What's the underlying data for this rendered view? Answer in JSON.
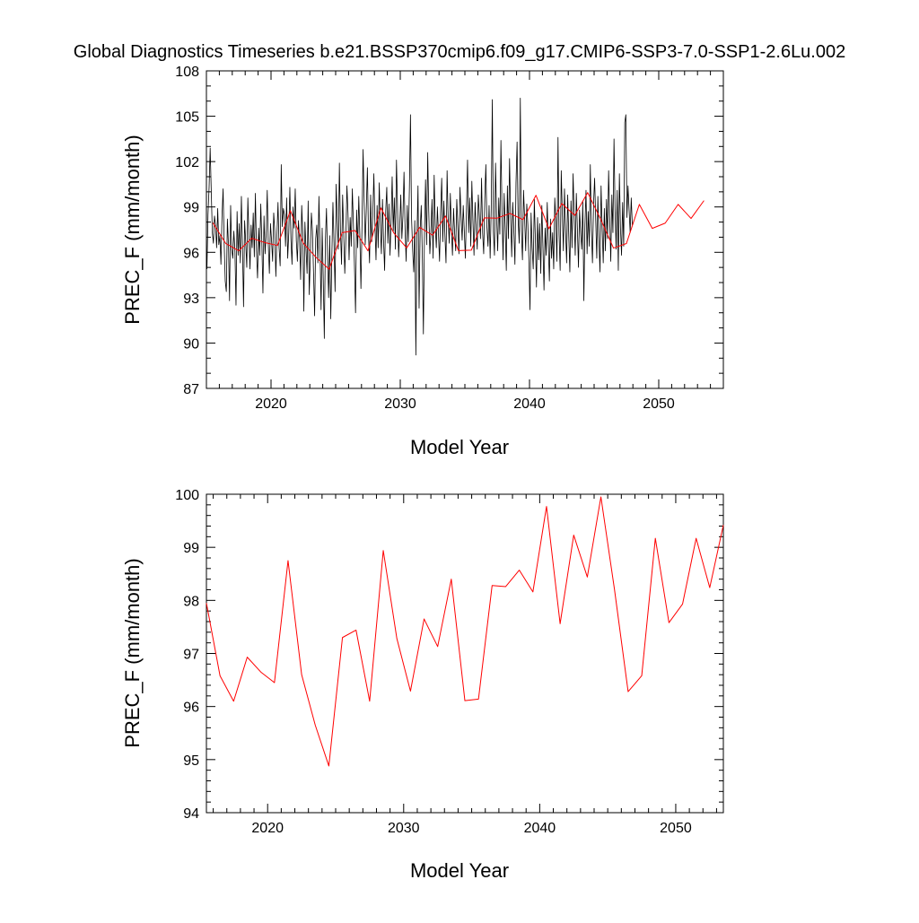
{
  "figure_title": "Global Diagnostics Timeseries b.e21.BSSP370cmip6.f09_g17.CMIP6-SSP3-7.0-SSP1-2.6Lu.002",
  "colors": {
    "monthly": "#000000",
    "annual": "#ff0000",
    "axis": "#000000",
    "background": "#ffffff"
  },
  "chart_data": [
    {
      "type": "line",
      "panel": "top",
      "xlabel": "Model Year",
      "ylabel": "PREC_F (mm/month)",
      "xlim": [
        2015,
        2055
      ],
      "ylim": [
        87,
        108
      ],
      "xticks": [
        2020,
        2030,
        2040,
        2050
      ],
      "yticks": [
        87,
        90,
        93,
        96,
        99,
        102,
        105,
        108
      ],
      "series": [
        {
          "name": "monthly",
          "color": "#000000",
          "x_start": 2015.04,
          "x_step": 0.08333,
          "values": [
            94.9,
            98.5,
            100.3,
            102.9,
            100.1,
            97.3,
            96.6,
            98.4,
            97.8,
            96.3,
            98.9,
            96.5,
            97.1,
            95.2,
            98.4,
            100.2,
            96.6,
            94.1,
            93.4,
            98.2,
            96.5,
            92.8,
            99.1,
            96.2,
            95.6,
            97.4,
            96.1,
            92.5,
            98.7,
            95.8,
            97.9,
            95.3,
            99.7,
            96.4,
            92.4,
            98.1,
            96.7,
            95.0,
            99.6,
            97.1,
            94.9,
            97.8,
            96.3,
            98.6,
            95.7,
            99.9,
            96.1,
            94.3,
            97.6,
            95.8,
            99.2,
            96.6,
            93.3,
            98.4,
            95.9,
            97.2,
            100.1,
            96.5,
            94.6,
            97.9,
            96.8,
            95.4,
            98.6,
            97.4,
            94.4,
            97.1,
            99.3,
            96.3,
            95.1,
            101.8,
            97.7,
            98.9,
            98.5,
            96.4,
            99.6,
            95.6,
            97.3,
            100.3,
            96.9,
            95.2,
            99.0,
            97.6,
            100.2,
            96.8,
            95.4,
            98.1,
            96.9,
            94.2,
            99.1,
            97.3,
            92.1,
            98.0,
            96.2,
            94.6,
            99.4,
            93.2,
            95.6,
            98.6,
            97.4,
            94.6,
            91.8,
            96.9,
            97.8,
            95.3,
            99.7,
            96.4,
            92.2,
            97.6,
            94.3,
            90.3,
            96.8,
            98.9,
            95.6,
            93.0,
            97.1,
            91.6,
            95.8,
            99.3,
            96.6,
            93.4,
            100.5,
            98.1,
            96.2,
            101.9,
            97.4,
            95.2,
            99.8,
            97.3,
            94.6,
            96.9,
            100.4,
            98.6,
            95.5,
            98.3,
            96.4,
            100.2,
            97.9,
            95.1,
            92.0,
            98.8,
            96.3,
            99.7,
            97.1,
            93.6,
            97.8,
            102.8,
            99.3,
            96.5,
            98.9,
            101.6,
            97.2,
            95.3,
            99.8,
            96.7,
            98.4,
            101.2,
            97.9,
            95.5,
            99.1,
            96.3,
            100.6,
            97.8,
            95.9,
            99.5,
            96.8,
            94.8,
            98.7,
            100.3,
            96.6,
            99.2,
            95.8,
            98.1,
            101.0,
            97.4,
            99.6,
            96.2,
            102.1,
            98.9,
            95.7,
            97.6,
            99.8,
            96.9,
            98.4,
            101.3,
            97.5,
            95.4,
            99.1,
            96.7,
            100.2,
            105.1,
            98.3,
            96.2,
            94.7,
            98.1,
            89.2,
            96.9,
            100.4,
            92.3,
            97.5,
            99.1,
            95.8,
            90.6,
            97.3,
            100.8,
            96.5,
            102.6,
            98.7,
            95.9,
            97.4,
            99.5,
            95.6,
            101.1,
            97.8,
            96.3,
            99.0,
            97.2,
            95.4,
            98.6,
            100.9,
            96.7,
            99.4,
            97.1,
            95.3,
            101.4,
            98.2,
            96.6,
            99.9,
            97.5,
            95.8,
            98.9,
            97.3,
            96.1,
            99.5,
            97.7,
            95.9,
            100.3,
            98.4,
            96.8,
            99.1,
            97.4,
            95.6,
            98.8,
            102.1,
            97.3,
            99.6,
            96.4,
            100.7,
            98.1,
            95.8,
            99.3,
            97.6,
            96.2,
            99.8,
            98.4,
            96.9,
            100.9,
            97.3,
            95.9,
            99.5,
            101.8,
            97.7,
            96.4,
            99.1,
            95.6,
            98.9,
            106.1,
            97.4,
            95.8,
            101.9,
            98.3,
            96.1,
            99.6,
            97.2,
            103.4,
            98.7,
            95.5,
            99.9,
            97.6,
            94.8,
            100.4,
            96.9,
            102.2,
            98.5,
            95.7,
            99.3,
            97.4,
            95.2,
            100.6,
            103.3,
            98.1,
            96.6,
            106.2,
            97.4,
            95.5,
            100.1,
            98.3,
            96.1,
            99.2,
            97.8,
            95.4,
            92.2,
            98.6,
            96.3,
            94.9,
            99.5,
            96.8,
            93.7,
            98.3,
            95.5,
            97.9,
            94.6,
            99.1,
            96.4,
            93.5,
            97.6,
            95.8,
            99.3,
            96.5,
            94.1,
            98.2,
            95.6,
            97.3,
            94.9,
            99.6,
            98.1,
            95.4,
            103.6,
            97.2,
            94.8,
            101.4,
            98.6,
            96.1,
            100.2,
            97.5,
            95.3,
            99.8,
            97.1,
            94.7,
            99.4,
            96.3,
            101.2,
            98.4,
            95.8,
            99.9,
            97.6,
            95.0,
            98.8,
            97.3,
            96.2,
            99.4,
            92.8,
            97.8,
            100.1,
            95.9,
            98.7,
            96.4,
            101.8,
            97.5,
            95.3,
            99.2,
            100.9,
            98.2,
            95.6,
            99.7,
            96.8,
            94.7,
            100.4,
            97.6,
            95.3,
            98.9,
            96.1,
            99.5,
            96.9,
            101.4,
            98.3,
            95.4,
            99.8,
            97.3,
            103.5,
            98.7,
            96.2,
            100.1,
            94.8,
            101.2,
            97.6,
            95.8,
            99.3,
            96.4,
            104.6,
            105.1,
            98.3,
            100.4,
            98.8,
            97.3,
            99.6,
            97.8
          ]
        },
        {
          "name": "annual mean",
          "color": "#ff0000",
          "x": [
            2015.5,
            2016.5,
            2017.5,
            2018.5,
            2019.5,
            2020.5,
            2021.5,
            2022.5,
            2023.5,
            2024.5,
            2025.5,
            2026.5,
            2027.5,
            2028.5,
            2029.5,
            2030.5,
            2031.5,
            2032.5,
            2033.5,
            2034.5,
            2035.5,
            2036.5,
            2037.5,
            2038.5,
            2039.5,
            2040.5,
            2041.5,
            2042.5,
            2043.5,
            2044.5,
            2045.5,
            2046.5,
            2047.5,
            2048.5,
            2049.5,
            2050.5,
            2051.5,
            2052.5,
            2053.5
          ],
          "values": [
            97.95,
            96.58,
            96.1,
            96.93,
            96.65,
            96.45,
            98.75,
            96.6,
            95.65,
            94.88,
            97.3,
            97.44,
            96.1,
            98.94,
            97.28,
            96.29,
            97.65,
            97.13,
            98.4,
            96.11,
            96.14,
            98.28,
            98.26,
            98.57,
            98.16,
            99.77,
            97.56,
            99.23,
            98.44,
            99.95,
            98.2,
            96.28,
            96.58,
            99.17,
            97.58,
            97.93,
            99.17,
            98.24,
            99.42
          ]
        }
      ]
    },
    {
      "type": "line",
      "panel": "bottom",
      "xlabel": "Model Year",
      "ylabel": "PREC_F (mm/month)",
      "xlim": [
        2015.5,
        2053.5
      ],
      "ylim": [
        94,
        100
      ],
      "xticks": [
        2020,
        2030,
        2040,
        2050
      ],
      "yticks": [
        94,
        95,
        96,
        97,
        98,
        99,
        100
      ],
      "series": [
        {
          "name": "annual mean",
          "color": "#ff0000",
          "x": [
            2015.5,
            2016.5,
            2017.5,
            2018.5,
            2019.5,
            2020.5,
            2021.5,
            2022.5,
            2023.5,
            2024.5,
            2025.5,
            2026.5,
            2027.5,
            2028.5,
            2029.5,
            2030.5,
            2031.5,
            2032.5,
            2033.5,
            2034.5,
            2035.5,
            2036.5,
            2037.5,
            2038.5,
            2039.5,
            2040.5,
            2041.5,
            2042.5,
            2043.5,
            2044.5,
            2045.5,
            2046.5,
            2047.5,
            2048.5,
            2049.5,
            2050.5,
            2051.5,
            2052.5,
            2053.5
          ],
          "values": [
            97.95,
            96.58,
            96.1,
            96.93,
            96.65,
            96.45,
            98.75,
            96.6,
            95.65,
            94.88,
            97.3,
            97.44,
            96.1,
            98.94,
            97.28,
            96.29,
            97.65,
            97.13,
            98.4,
            96.11,
            96.14,
            98.28,
            98.26,
            98.57,
            98.16,
            99.77,
            97.56,
            99.23,
            98.44,
            99.95,
            98.2,
            96.28,
            96.58,
            99.17,
            97.58,
            97.93,
            99.17,
            98.24,
            99.42
          ]
        }
      ]
    }
  ]
}
